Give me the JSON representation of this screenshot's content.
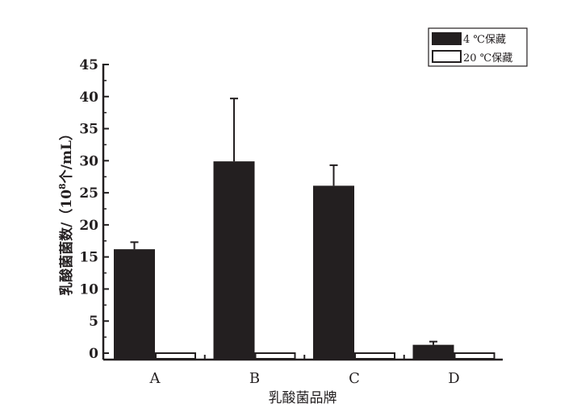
{
  "chart_data": {
    "type": "bar",
    "categories": [
      "A",
      "B",
      "C",
      "D"
    ],
    "series": [
      {
        "name": "4 ℃保藏",
        "values": [
          16.2,
          29.9,
          26.1,
          1.3
        ],
        "error": [
          1.1,
          9.8,
          3.2,
          0.5
        ],
        "color": "#231f20"
      },
      {
        "name": "20 ℃保藏",
        "values": [
          0,
          0,
          0,
          0
        ],
        "color": "#ffffff"
      }
    ],
    "xlabel": "乳酸菌品牌",
    "ylabel": "乳酸菌菌数/（10⁸个/mL）",
    "ylabel_parts": {
      "pre": "乳酸菌菌数/（10",
      "sup": "8",
      "post": "个/mL）"
    },
    "ylim": [
      -1,
      45
    ],
    "yticks": [
      0,
      5,
      10,
      15,
      20,
      25,
      30,
      35,
      40,
      45
    ],
    "grid": false,
    "legend": "top-right"
  }
}
